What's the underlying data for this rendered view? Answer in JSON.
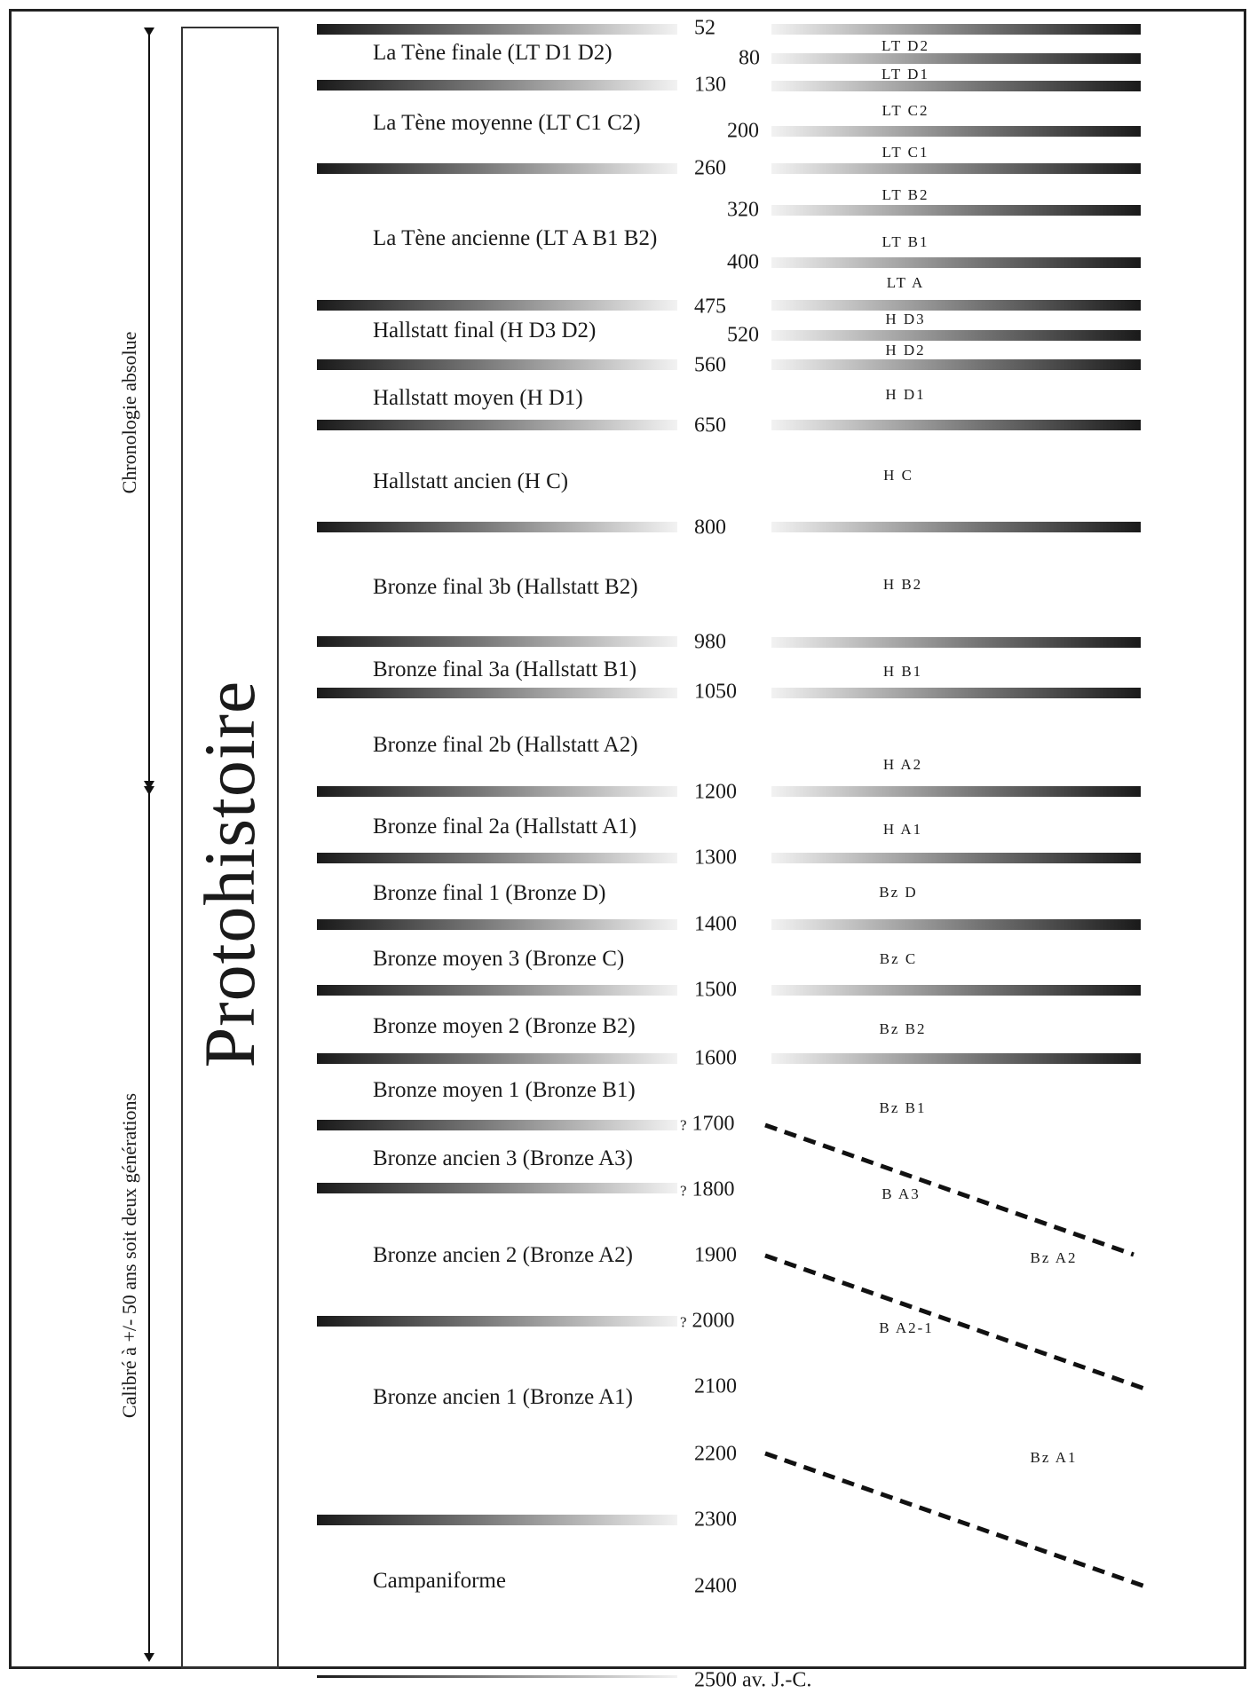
{
  "title": "Protohistoire",
  "axis": {
    "upper_label": "Chronologie absolue",
    "lower_label": "Calibré à +/- 50 ans soit deux générations"
  },
  "periods": [
    {
      "label": "La Tène finale (LT D1 D2)"
    },
    {
      "label": "La Tène moyenne (LT C1 C2)"
    },
    {
      "label": "La Tène ancienne (LT A B1 B2)"
    },
    {
      "label": "Hallstatt final (H D3 D2)"
    },
    {
      "label": "Hallstatt moyen (H D1)"
    },
    {
      "label": "Hallstatt ancien (H C)"
    },
    {
      "label": "Bronze final 3b (Hallstatt B2)"
    },
    {
      "label": "Bronze final 3a (Hallstatt B1)"
    },
    {
      "label": "Bronze final 2b (Hallstatt A2)"
    },
    {
      "label": "Bronze final 2a (Hallstatt A1)"
    },
    {
      "label": "Bronze final 1 (Bronze D)"
    },
    {
      "label": "Bronze moyen 3 (Bronze C)"
    },
    {
      "label": "Bronze moyen 2 (Bronze B2)"
    },
    {
      "label": "Bronze moyen 1 (Bronze B1)"
    },
    {
      "label": "Bronze ancien 3 (Bronze A3)"
    },
    {
      "label": "Bronze ancien 2 (Bronze A2)"
    },
    {
      "label": "Bronze ancien 1 (Bronze A1)"
    },
    {
      "label": "Campaniforme"
    }
  ],
  "dates": [
    {
      "text": "52"
    },
    {
      "text": "80"
    },
    {
      "text": "130"
    },
    {
      "text": "200"
    },
    {
      "text": "260"
    },
    {
      "text": "320"
    },
    {
      "text": "400"
    },
    {
      "text": "475"
    },
    {
      "text": "520"
    },
    {
      "text": "560"
    },
    {
      "text": "650"
    },
    {
      "text": "800"
    },
    {
      "text": "980"
    },
    {
      "text": "1050"
    },
    {
      "text": "1200"
    },
    {
      "text": "1300"
    },
    {
      "text": "1400"
    },
    {
      "text": "1500"
    },
    {
      "text": "1600"
    },
    {
      "text": "1700",
      "prefix": "?"
    },
    {
      "text": "1800",
      "prefix": "?"
    },
    {
      "text": "1900"
    },
    {
      "text": "2000",
      "prefix": "?"
    },
    {
      "text": "2100"
    },
    {
      "text": "2200"
    },
    {
      "text": "2300"
    },
    {
      "text": "2400"
    },
    {
      "text": "2500 av. J.-C."
    }
  ],
  "codes": [
    {
      "text": "LT D2"
    },
    {
      "text": "LT D1"
    },
    {
      "text": "LT C2"
    },
    {
      "text": "LT C1"
    },
    {
      "text": "LT B2"
    },
    {
      "text": "LT B1"
    },
    {
      "text": "LT A"
    },
    {
      "text": "H D3"
    },
    {
      "text": "H D2"
    },
    {
      "text": "H D1"
    },
    {
      "text": "H C"
    },
    {
      "text": "H B2"
    },
    {
      "text": "H B1"
    },
    {
      "text": "H A2"
    },
    {
      "text": "H A1"
    },
    {
      "text": "Bz D"
    },
    {
      "text": "Bz C"
    },
    {
      "text": "Bz B2"
    },
    {
      "text": "Bz B1"
    },
    {
      "text": "B A3"
    },
    {
      "text": "Bz A2"
    },
    {
      "text": "B A2-1"
    },
    {
      "text": "Bz A1"
    }
  ]
}
